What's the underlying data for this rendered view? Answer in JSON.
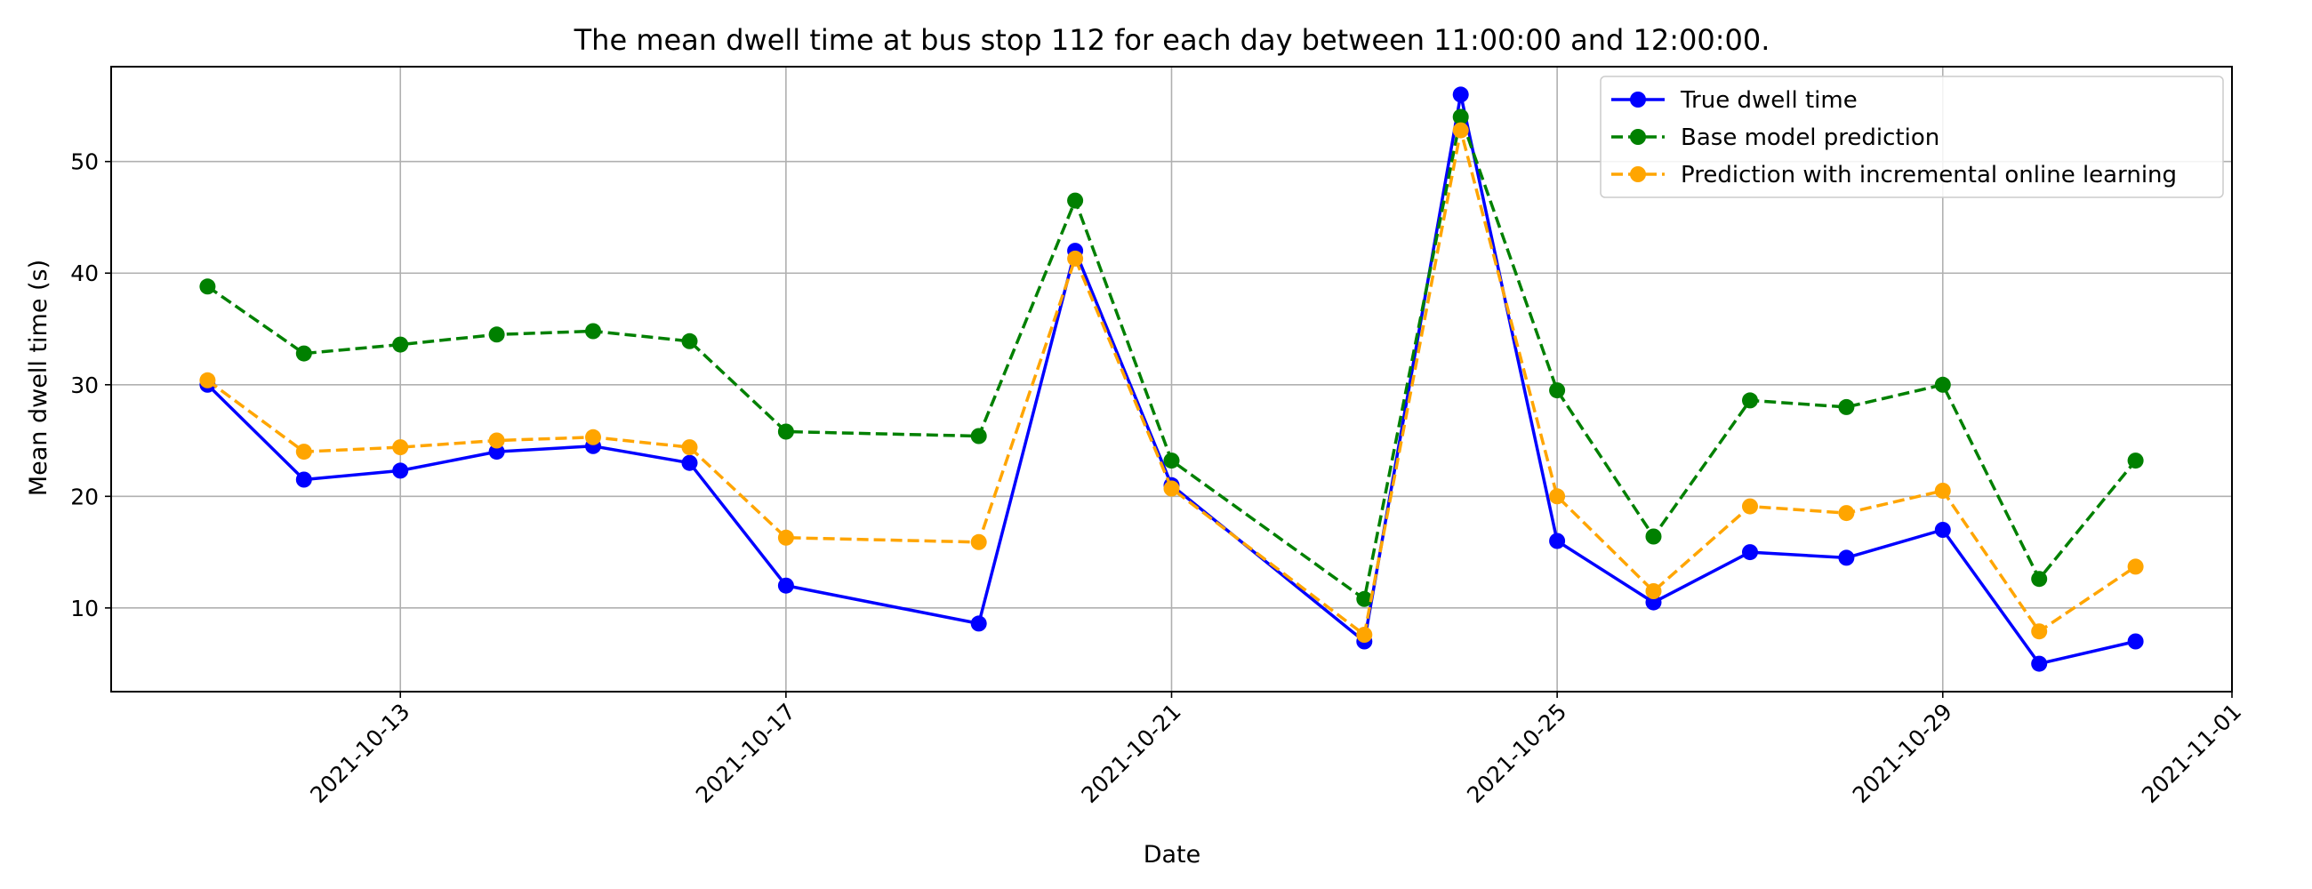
{
  "chart_data": {
    "type": "line",
    "title": "The mean dwell time at bus stop 112 for each day between 11:00:00 and 12:00:00.",
    "xlabel": "Date",
    "ylabel": "Mean dwell time (s)",
    "x": [
      "2021-10-11",
      "2021-10-12",
      "2021-10-13",
      "2021-10-14",
      "2021-10-15",
      "2021-10-16",
      "2021-10-17",
      "2021-10-19",
      "2021-10-20",
      "2021-10-21",
      "2021-10-23",
      "2021-10-24",
      "2021-10-25",
      "2021-10-26",
      "2021-10-27",
      "2021-10-28",
      "2021-10-29",
      "2021-10-30",
      "2021-10-31"
    ],
    "x_ticks": [
      "2021-10-13",
      "2021-10-17",
      "2021-10-21",
      "2021-10-25",
      "2021-10-29",
      "2021-11-01"
    ],
    "xlim": [
      "2021-10-10",
      "2021-11-01"
    ],
    "y_ticks": [
      10,
      20,
      30,
      40,
      50
    ],
    "ylim": [
      2.5,
      58.5
    ],
    "grid": true,
    "legend_position": "top-right",
    "series": [
      {
        "name": "True dwell time",
        "color": "#0000ff",
        "style": "solid",
        "values": [
          30.0,
          21.5,
          22.3,
          24.0,
          24.5,
          23.0,
          12.0,
          8.6,
          42.0,
          21.0,
          7.0,
          56.0,
          16.0,
          10.5,
          15.0,
          14.5,
          17.0,
          5.0,
          7.0
        ]
      },
      {
        "name": "Base model prediction",
        "color": "#008000",
        "style": "dashed",
        "values": [
          38.8,
          32.8,
          33.6,
          34.5,
          34.8,
          33.9,
          25.8,
          25.4,
          46.5,
          23.2,
          10.8,
          54.0,
          29.5,
          16.4,
          28.6,
          28.0,
          30.0,
          12.6,
          23.2
        ]
      },
      {
        "name": "Prediction with incremental online learning",
        "color": "#ffa500",
        "style": "dashed",
        "values": [
          30.4,
          24.0,
          24.4,
          25.0,
          25.3,
          24.4,
          16.3,
          15.9,
          41.3,
          20.7,
          7.6,
          52.8,
          20.0,
          11.5,
          19.1,
          18.5,
          20.5,
          7.9,
          13.7
        ]
      }
    ]
  }
}
